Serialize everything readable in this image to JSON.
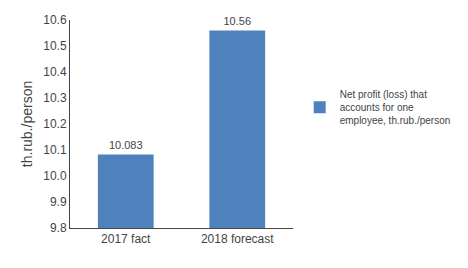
{
  "chart_data": {
    "type": "bar",
    "categories": [
      "2017 fact",
      "2018 forecast"
    ],
    "series": [
      {
        "name": "Net profit (loss) that\naccounts for one\nemployee, th.rub./person",
        "color": "#4F81BD",
        "values": [
          10.083,
          10.56
        ]
      }
    ],
    "ylabel": "th.rub./person",
    "ylim": [
      9.8,
      10.6
    ],
    "yticks": [
      9.8,
      9.9,
      {
        "value": 10.0,
        "label": "10.0"
      },
      10.1,
      10.2,
      10.3,
      10.4,
      10.5,
      10.6
    ],
    "data_labels": true,
    "grid": false,
    "legend": "right"
  }
}
